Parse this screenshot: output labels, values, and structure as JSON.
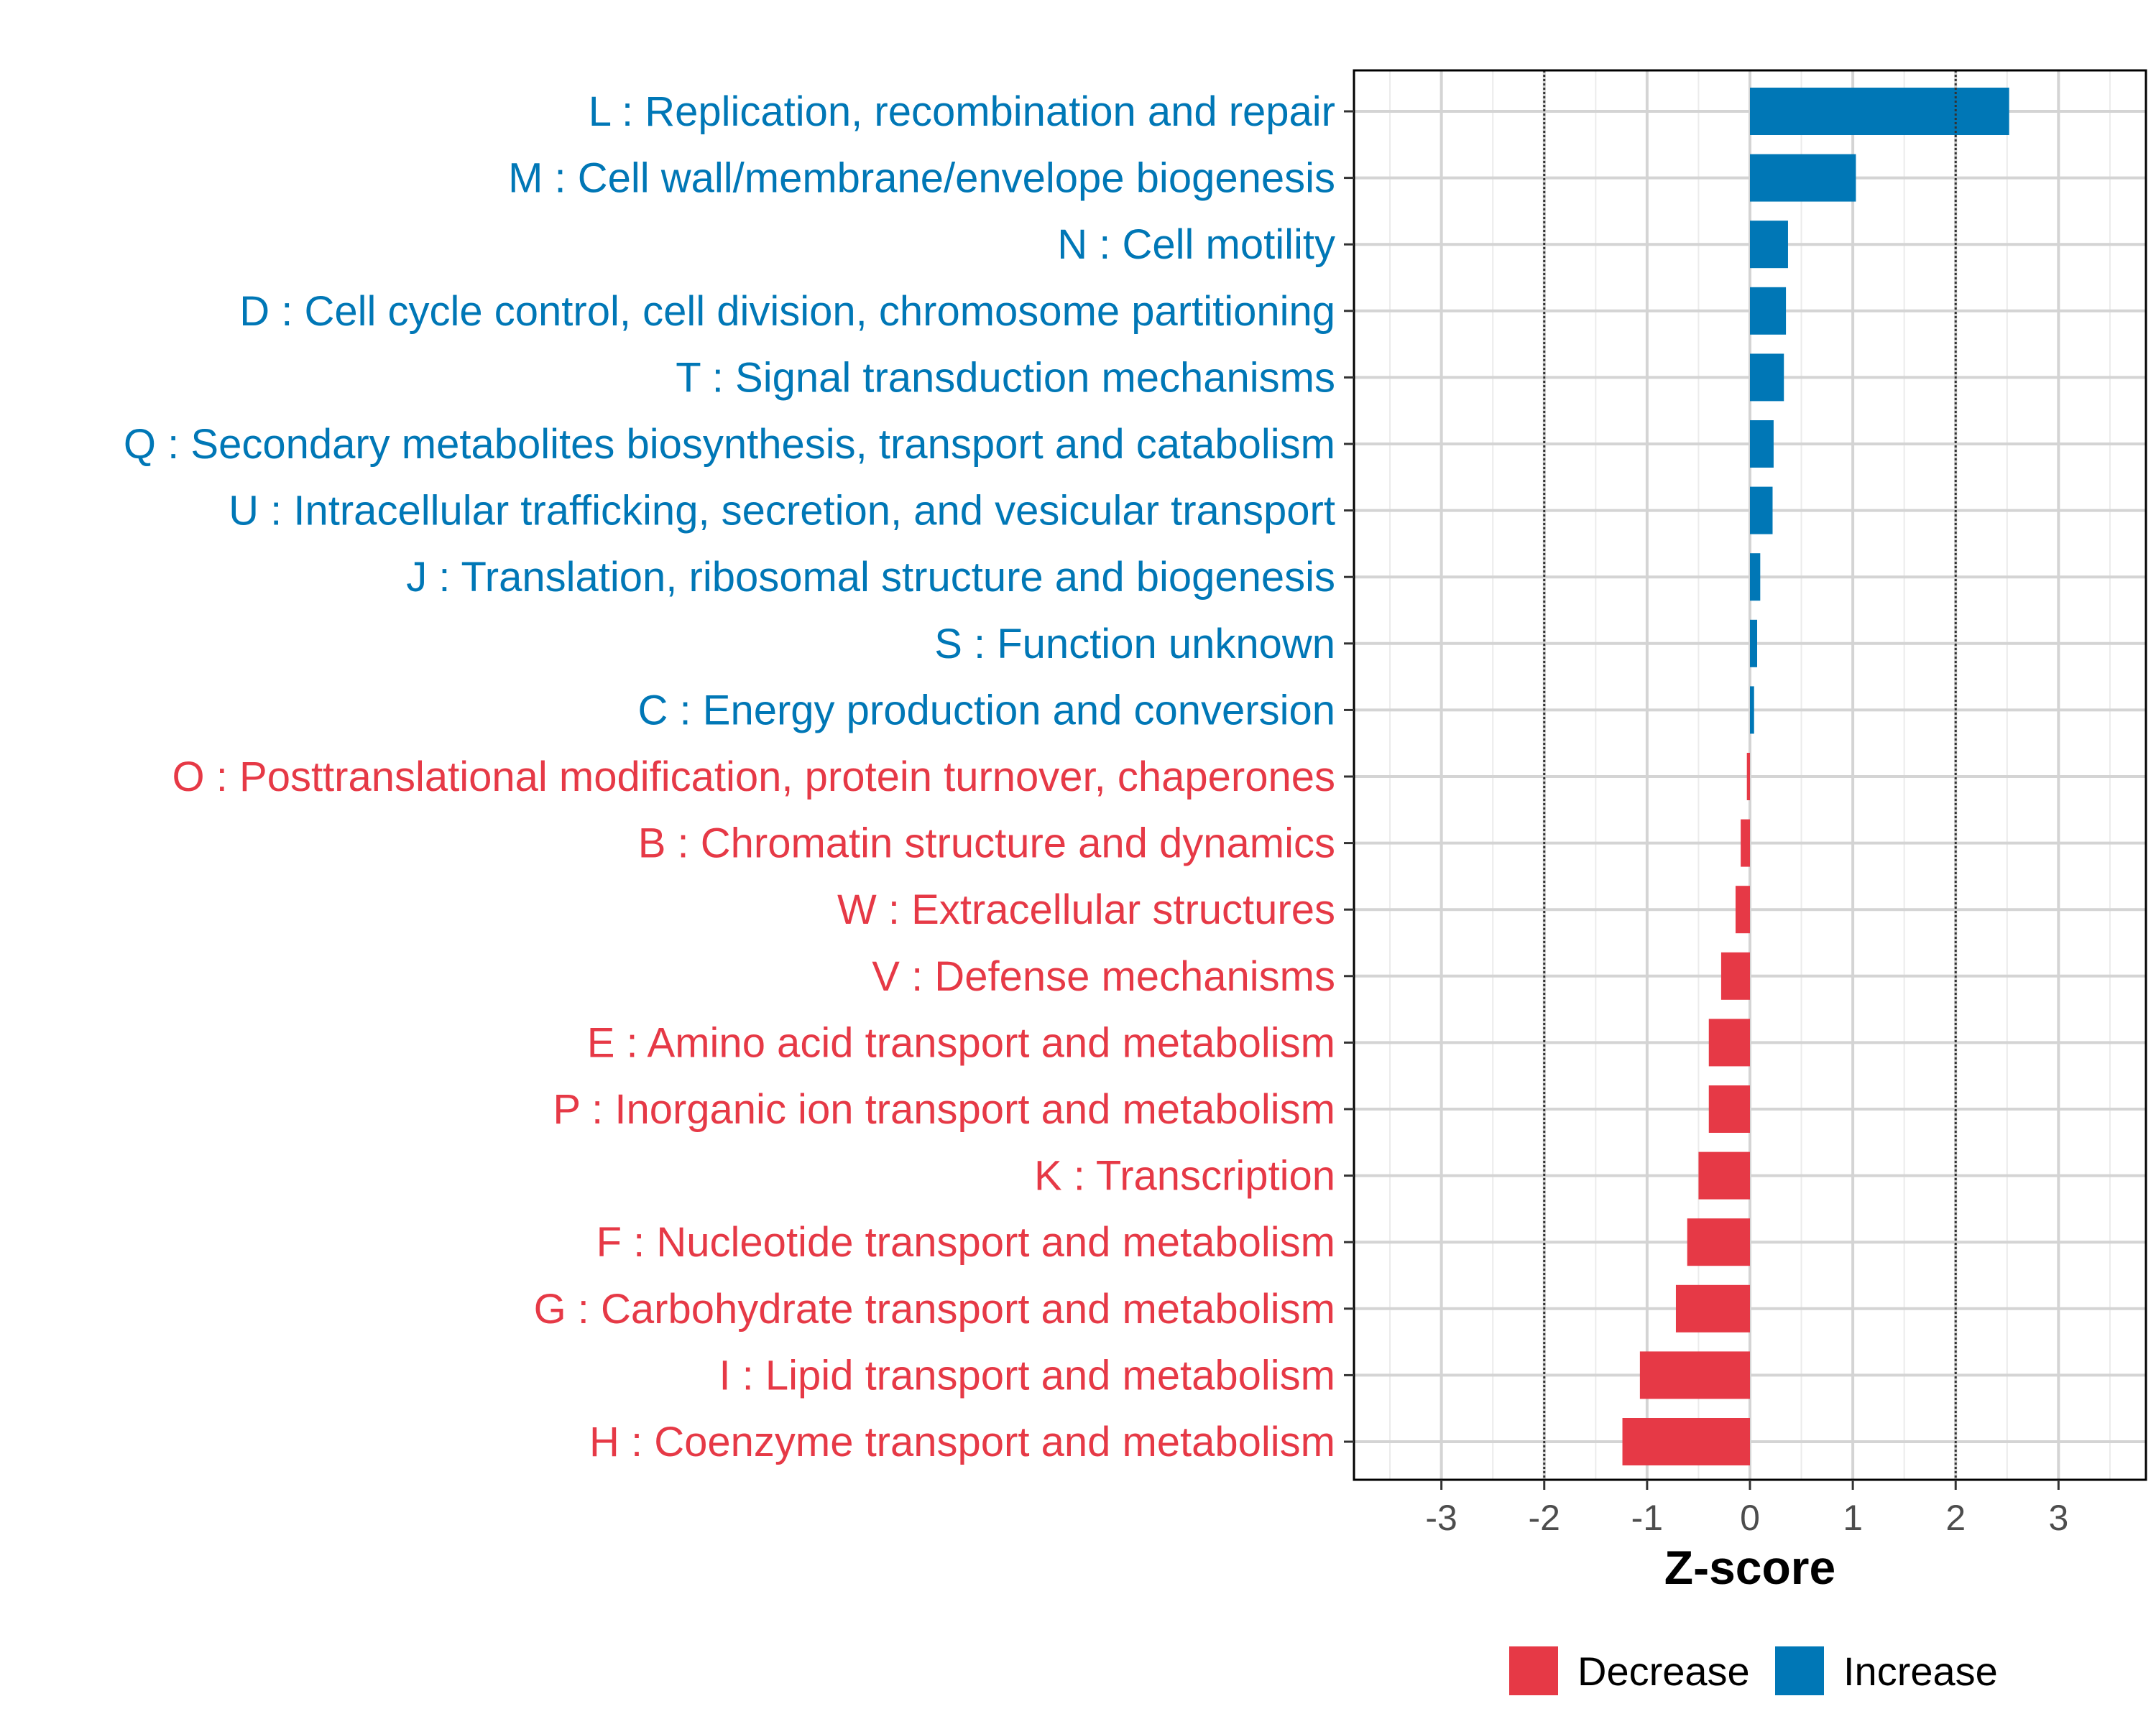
{
  "chart_data": {
    "type": "bar",
    "orientation": "horizontal",
    "xlabel": "Z-score",
    "xlim": [
      -3.85,
      3.85
    ],
    "x_ticks": [
      -3,
      -2,
      -1,
      0,
      1,
      2,
      3
    ],
    "x_tick_labels": [
      "-3",
      "-2",
      "-1",
      "0",
      "1",
      "2",
      "3"
    ],
    "reference_lines": [
      -2,
      2
    ],
    "colors": {
      "Decrease": "#e63946",
      "Increase": "#0077b6"
    },
    "categories": [
      {
        "label": "L : Replication, recombination and repair",
        "value": 2.52,
        "direction": "Increase"
      },
      {
        "label": "M : Cell wall/membrane/envelope biogenesis",
        "value": 1.03,
        "direction": "Increase"
      },
      {
        "label": "N : Cell motility",
        "value": 0.37,
        "direction": "Increase"
      },
      {
        "label": "D : Cell cycle control, cell division, chromosome partitioning",
        "value": 0.35,
        "direction": "Increase"
      },
      {
        "label": "T : Signal transduction mechanisms",
        "value": 0.33,
        "direction": "Increase"
      },
      {
        "label": "Q : Secondary metabolites biosynthesis, transport and catabolism",
        "value": 0.23,
        "direction": "Increase"
      },
      {
        "label": "U : Intracellular trafficking, secretion, and vesicular transport",
        "value": 0.22,
        "direction": "Increase"
      },
      {
        "label": "J : Translation, ribosomal structure and biogenesis",
        "value": 0.1,
        "direction": "Increase"
      },
      {
        "label": "S : Function unknown",
        "value": 0.07,
        "direction": "Increase"
      },
      {
        "label": "C : Energy production and conversion",
        "value": 0.04,
        "direction": "Increase"
      },
      {
        "label": "O : Posttranslational modification, protein turnover, chaperones",
        "value": -0.03,
        "direction": "Decrease"
      },
      {
        "label": "B : Chromatin structure and dynamics",
        "value": -0.09,
        "direction": "Decrease"
      },
      {
        "label": "W : Extracellular structures",
        "value": -0.14,
        "direction": "Decrease"
      },
      {
        "label": "V : Defense mechanisms",
        "value": -0.28,
        "direction": "Decrease"
      },
      {
        "label": "E : Amino acid transport and metabolism",
        "value": -0.4,
        "direction": "Decrease"
      },
      {
        "label": "P : Inorganic ion transport and metabolism",
        "value": -0.4,
        "direction": "Decrease"
      },
      {
        "label": "K : Transcription",
        "value": -0.5,
        "direction": "Decrease"
      },
      {
        "label": "F : Nucleotide transport and metabolism",
        "value": -0.61,
        "direction": "Decrease"
      },
      {
        "label": "G : Carbohydrate transport and metabolism",
        "value": -0.72,
        "direction": "Decrease"
      },
      {
        "label": "I : Lipid transport and metabolism",
        "value": -1.07,
        "direction": "Decrease"
      },
      {
        "label": "H : Coenzyme transport and metabolism",
        "value": -1.24,
        "direction": "Decrease"
      }
    ],
    "legend": [
      {
        "label": "Decrease"
      },
      {
        "label": "Increase"
      }
    ],
    "legend_position": "bottom"
  }
}
